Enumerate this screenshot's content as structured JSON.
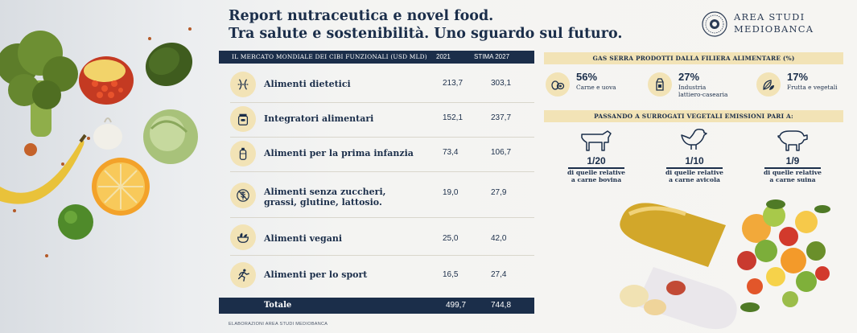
{
  "header": {
    "title_line1": "Report nutraceutica e novel food.",
    "title_line2": "Tra salute e sostenibilità. Uno sguardo sul futuro.",
    "logo_line1": "AREA STUDI",
    "logo_line2": "MEDIOBANCA"
  },
  "table": {
    "header_label": "IL MERCATO MONDIALE DEI CIBI FUNZIONALI (USD MLD)",
    "col1": "2021",
    "col2": "STIMA 2027",
    "rows": [
      {
        "icon": "waist-measure-icon",
        "label": "Alimenti dietetici",
        "v2021": "213,7",
        "v2027": "303,1"
      },
      {
        "icon": "supplement-jar-icon",
        "label": "Integratori alimentari",
        "v2021": "152,1",
        "v2027": "237,7"
      },
      {
        "icon": "baby-bottle-icon",
        "label": "Alimenti per la prima infanzia",
        "v2021": "73,4",
        "v2027": "106,7"
      },
      {
        "icon": "wheat-crossed-icon",
        "label": "Alimenti senza zuccheri, grassi, glutine, lattosio.",
        "v2021": "19,0",
        "v2027": "27,9"
      },
      {
        "icon": "salad-bowl-icon",
        "label": "Alimenti vegani",
        "v2021": "25,0",
        "v2027": "42,0"
      },
      {
        "icon": "runner-icon",
        "label": "Alimenti per lo sport",
        "v2021": "16,5",
        "v2027": "27,4"
      }
    ],
    "total_label": "Totale",
    "total_2021": "499,7",
    "total_2027": "744,8"
  },
  "source": "ELABORAZIONI AREA STUDI MEDIOBANCA",
  "gas": {
    "title": "GAS SERRA PRODOTTI DALLA FILIERA ALIMENTARE (%)",
    "items": [
      {
        "icon": "eggs-meat-icon",
        "pct": "56%",
        "label1": "Carne e uova",
        "label2": ""
      },
      {
        "icon": "milk-carton-icon",
        "pct": "27%",
        "label1": "Industria",
        "label2": "lattiero-casearia"
      },
      {
        "icon": "leaves-icon",
        "pct": "17%",
        "label1": "Frutta e vegetali",
        "label2": ""
      }
    ]
  },
  "substitutes": {
    "title": "PASSANDO A SURROGATI VEGETALI EMISSIONI PARI A:",
    "items": [
      {
        "icon": "cow-icon",
        "ratio": "1/20",
        "label1": "di quelle relative",
        "label2": "a carne bovina"
      },
      {
        "icon": "chicken-icon",
        "ratio": "1/10",
        "label1": "di quelle relative",
        "label2": "a carne avicola"
      },
      {
        "icon": "pig-icon",
        "ratio": "1/9",
        "label1": "di quelle relative",
        "label2": "a carne suina"
      }
    ]
  },
  "colors": {
    "navy": "#1b2e4a",
    "cream": "#f2e3b6"
  }
}
